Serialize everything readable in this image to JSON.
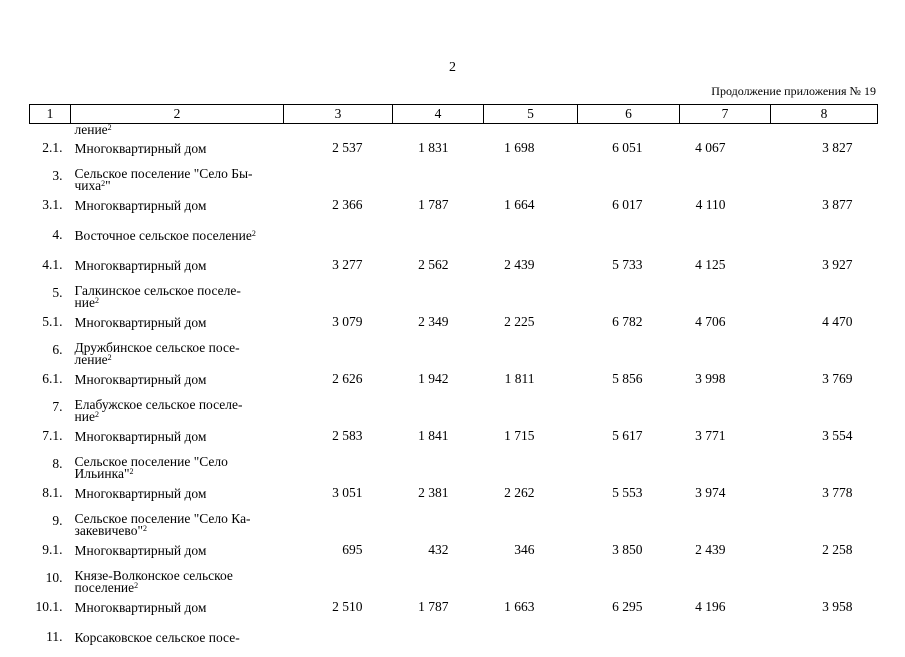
{
  "page_number": "2",
  "continuation": "Продолжение приложения № 19",
  "headers": [
    "1",
    "2",
    "3",
    "4",
    "5",
    "6",
    "7",
    "8"
  ],
  "carry_over": {
    "text": "ление",
    "sup": "2"
  },
  "rows": [
    {
      "kind": "data",
      "num": "2.1.",
      "name": "Многоквартирный дом",
      "values": [
        "2 537",
        "1 831",
        "1 698",
        "6 051",
        "4 067",
        "3 827"
      ]
    },
    {
      "kind": "group",
      "num": "3.",
      "line1": "Сельское поселение \"Село Бы-",
      "line2": "чиха",
      "sup": "2",
      "tail": "\""
    },
    {
      "kind": "data",
      "num": "3.1.",
      "name": "Многоквартирный дом",
      "values": [
        "2 366",
        "1 787",
        "1 664",
        "6 017",
        "4 110",
        "3 877"
      ]
    },
    {
      "kind": "group1",
      "num": "4.",
      "line1": "Восточное сельское поселение",
      "sup": "2"
    },
    {
      "kind": "data",
      "num": "4.1.",
      "name": "Многоквартирный дом",
      "values": [
        "3 277",
        "2 562",
        "2 439",
        "5 733",
        "4 125",
        "3 927"
      ]
    },
    {
      "kind": "group",
      "num": "5.",
      "line1": "Галкинское сельское поселе-",
      "line2": "ние",
      "sup": "2",
      "tail": ""
    },
    {
      "kind": "data",
      "num": "5.1.",
      "name": "Многоквартирный дом",
      "values": [
        "3 079",
        "2 349",
        "2 225",
        "6 782",
        "4 706",
        "4 470"
      ]
    },
    {
      "kind": "group",
      "num": "6.",
      "line1": "Дружбинское сельское посе-",
      "line2": "ление",
      "sup": "2",
      "tail": ""
    },
    {
      "kind": "data",
      "num": "6.1.",
      "name": "Многоквартирный дом",
      "values": [
        "2 626",
        "1 942",
        "1 811",
        "5 856",
        "3 998",
        "3 769"
      ]
    },
    {
      "kind": "group",
      "num": "7.",
      "line1": "Елабужское сельское поселе-",
      "line2": "ние",
      "sup": "2",
      "tail": ""
    },
    {
      "kind": "data",
      "num": "7.1.",
      "name": "Многоквартирный дом",
      "values": [
        "2 583",
        "1 841",
        "1 715",
        "5 617",
        "3 771",
        "3 554"
      ]
    },
    {
      "kind": "group",
      "num": "8.",
      "line1": "Сельское поселение \"Село",
      "line2": "Ильинка\"",
      "sup": "2",
      "tail": ""
    },
    {
      "kind": "data",
      "num": "8.1.",
      "name": "Многоквартирный дом",
      "values": [
        "3 051",
        "2 381",
        "2 262",
        "5 553",
        "3 974",
        "3 778"
      ]
    },
    {
      "kind": "group",
      "num": "9.",
      "line1": "Сельское поселение \"Село Ка-",
      "line2": "закевичево\"",
      "sup": "2",
      "tail": ""
    },
    {
      "kind": "data",
      "num": "9.1.",
      "name": "Многоквартирный дом",
      "values": [
        "695",
        "432",
        "346",
        "3 850",
        "2 439",
        "2 258"
      ]
    },
    {
      "kind": "group",
      "num": "10.",
      "line1": "Князе-Волконское сельское",
      "line2": "поселение",
      "sup": "2",
      "tail": ""
    },
    {
      "kind": "data",
      "num": "10.1.",
      "name": "Многоквартирный дом",
      "values": [
        "2 510",
        "1 787",
        "1 663",
        "6 295",
        "4 196",
        "3 958"
      ]
    },
    {
      "kind": "group1",
      "num": "11.",
      "line1": "Корсаковское сельское посе-",
      "sup": ""
    }
  ]
}
